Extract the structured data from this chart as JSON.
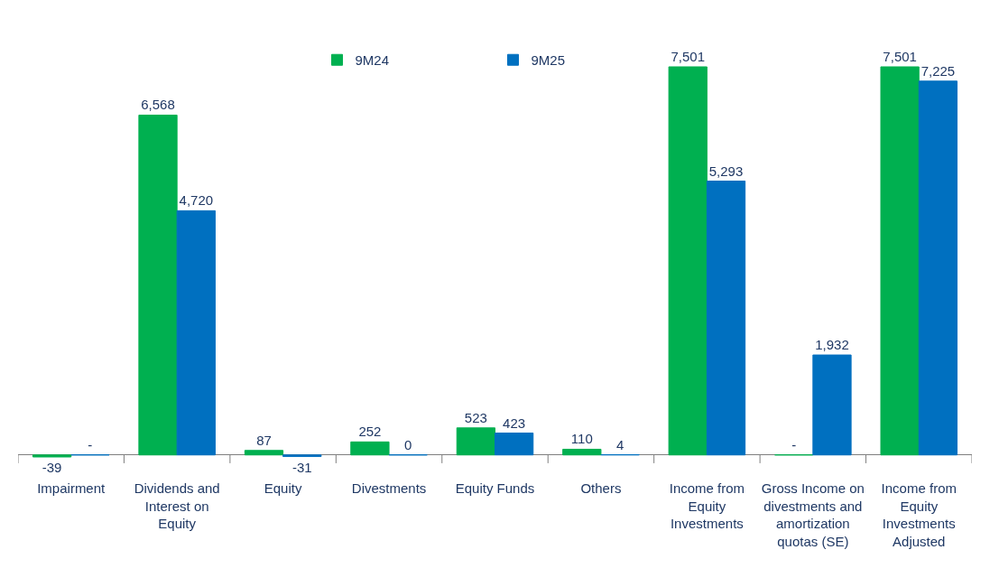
{
  "chart_data": {
    "type": "bar",
    "categories": [
      "Impairment",
      "Dividends and Interest on Equity",
      "Equity",
      "Divestments",
      "Equity Funds",
      "Others",
      "Income from Equity Investments",
      "Gross Income on divestments and amortization quotas (SE)",
      "Income from Equity Investments Adjusted"
    ],
    "series": [
      {
        "name": "9M24",
        "color": "#00b050",
        "values": [
          -39,
          6568,
          87,
          252,
          523,
          110,
          7501,
          0,
          7501
        ],
        "value_labels": [
          "-39",
          "6,568",
          "87",
          "252",
          "523",
          "110",
          "7,501",
          "-",
          "7,501"
        ]
      },
      {
        "name": "9M25",
        "color": "#0070c0",
        "values": [
          0,
          4720,
          -31,
          0,
          423,
          4,
          5293,
          1932,
          7225
        ],
        "value_labels": [
          "-",
          "4,720",
          "-31",
          "0",
          "423",
          "4",
          "5,293",
          "1,932",
          "7,225"
        ]
      }
    ],
    "tick_labels": "x",
    "legend": "top"
  }
}
